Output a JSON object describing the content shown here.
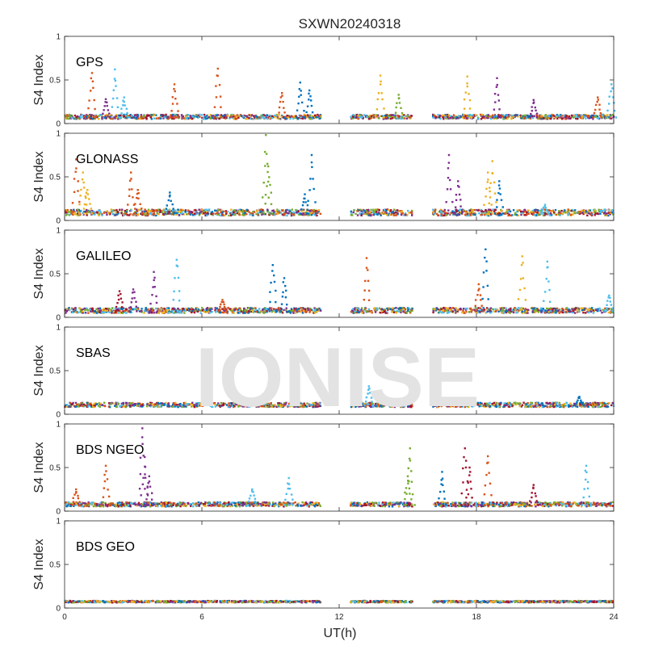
{
  "figure": {
    "title": "SXWN20240318",
    "watermark": "IONISE",
    "xlabel": "UT(h)",
    "ylabel": "S4 Index"
  },
  "colors": {
    "blue": "#0072BD",
    "orange": "#D95319",
    "yellow": "#EDB120",
    "purple": "#7E2F8E",
    "green": "#77AC30",
    "cyan": "#4DBEEE",
    "red": "#A2142F"
  },
  "chart_data": [
    {
      "type": "scatter",
      "panel": "GPS",
      "xlim": [
        0,
        24
      ],
      "ylim": [
        0,
        1
      ],
      "xticks": [
        "0",
        "6",
        "12",
        "18",
        "24"
      ],
      "yticks": [
        "0",
        "0.5",
        "1"
      ],
      "data_windows_h": [
        [
          0,
          11.2
        ],
        [
          12.5,
          15.2
        ],
        [
          16.1,
          24
        ]
      ],
      "baseline": 0.07,
      "spread": 0.05,
      "spikes": [
        {
          "x": 1.2,
          "y": 0.58,
          "color": "orange"
        },
        {
          "x": 2.2,
          "y": 0.62,
          "color": "cyan"
        },
        {
          "x": 2.6,
          "y": 0.3,
          "color": "cyan"
        },
        {
          "x": 1.8,
          "y": 0.28,
          "color": "purple"
        },
        {
          "x": 4.8,
          "y": 0.45,
          "color": "orange"
        },
        {
          "x": 6.7,
          "y": 0.63,
          "color": "orange"
        },
        {
          "x": 9.5,
          "y": 0.35,
          "color": "orange"
        },
        {
          "x": 10.3,
          "y": 0.47,
          "color": "blue"
        },
        {
          "x": 10.7,
          "y": 0.38,
          "color": "blue"
        },
        {
          "x": 13.8,
          "y": 0.55,
          "color": "yellow"
        },
        {
          "x": 14.6,
          "y": 0.33,
          "color": "green"
        },
        {
          "x": 17.6,
          "y": 0.54,
          "color": "yellow"
        },
        {
          "x": 18.9,
          "y": 0.52,
          "color": "purple"
        },
        {
          "x": 20.5,
          "y": 0.27,
          "color": "purple"
        },
        {
          "x": 23.3,
          "y": 0.3,
          "color": "orange"
        },
        {
          "x": 23.9,
          "y": 0.45,
          "color": "cyan"
        }
      ]
    },
    {
      "type": "scatter",
      "panel": "GLONASS",
      "xlim": [
        0,
        24
      ],
      "ylim": [
        0,
        1
      ],
      "xticks": [
        "0",
        "6",
        "12",
        "18",
        "24"
      ],
      "yticks": [
        "0",
        "0.5",
        "1"
      ],
      "data_windows_h": [
        [
          0,
          11.2
        ],
        [
          12.5,
          15.2
        ],
        [
          16.1,
          24
        ]
      ],
      "baseline": 0.08,
      "spread": 0.07,
      "spikes": [
        {
          "x": 0.5,
          "y": 0.7,
          "color": "orange"
        },
        {
          "x": 0.8,
          "y": 0.55,
          "color": "yellow"
        },
        {
          "x": 1.0,
          "y": 0.35,
          "color": "yellow"
        },
        {
          "x": 2.9,
          "y": 0.55,
          "color": "orange"
        },
        {
          "x": 3.2,
          "y": 0.35,
          "color": "orange"
        },
        {
          "x": 4.6,
          "y": 0.32,
          "color": "blue"
        },
        {
          "x": 8.8,
          "y": 0.98,
          "color": "green"
        },
        {
          "x": 8.9,
          "y": 0.62,
          "color": "green"
        },
        {
          "x": 10.8,
          "y": 0.75,
          "color": "blue"
        },
        {
          "x": 10.5,
          "y": 0.3,
          "color": "blue"
        },
        {
          "x": 16.8,
          "y": 0.75,
          "color": "purple"
        },
        {
          "x": 17.2,
          "y": 0.45,
          "color": "purple"
        },
        {
          "x": 18.7,
          "y": 0.68,
          "color": "yellow"
        },
        {
          "x": 18.5,
          "y": 0.55,
          "color": "yellow"
        },
        {
          "x": 19.0,
          "y": 0.45,
          "color": "blue"
        },
        {
          "x": 21.0,
          "y": 0.18,
          "color": "cyan"
        }
      ]
    },
    {
      "type": "scatter",
      "panel": "GALILEO",
      "xlim": [
        0,
        24
      ],
      "ylim": [
        0,
        1
      ],
      "xticks": [
        "0",
        "6",
        "12",
        "18",
        "24"
      ],
      "yticks": [
        "0",
        "0.5",
        "1"
      ],
      "data_windows_h": [
        [
          0,
          11.2
        ],
        [
          12.5,
          15.2
        ],
        [
          16.1,
          24
        ]
      ],
      "baseline": 0.07,
      "spread": 0.06,
      "spikes": [
        {
          "x": 2.4,
          "y": 0.3,
          "color": "red"
        },
        {
          "x": 3.0,
          "y": 0.32,
          "color": "purple"
        },
        {
          "x": 3.9,
          "y": 0.52,
          "color": "purple"
        },
        {
          "x": 4.9,
          "y": 0.66,
          "color": "cyan"
        },
        {
          "x": 6.9,
          "y": 0.2,
          "color": "orange"
        },
        {
          "x": 9.1,
          "y": 0.6,
          "color": "blue"
        },
        {
          "x": 9.6,
          "y": 0.45,
          "color": "blue"
        },
        {
          "x": 13.2,
          "y": 0.68,
          "color": "orange"
        },
        {
          "x": 18.4,
          "y": 0.78,
          "color": "blue"
        },
        {
          "x": 18.1,
          "y": 0.38,
          "color": "orange"
        },
        {
          "x": 20.0,
          "y": 0.7,
          "color": "yellow"
        },
        {
          "x": 21.1,
          "y": 0.64,
          "color": "cyan"
        },
        {
          "x": 23.8,
          "y": 0.25,
          "color": "cyan"
        }
      ]
    },
    {
      "type": "scatter",
      "panel": "SBAS",
      "xlim": [
        0,
        24
      ],
      "ylim": [
        0,
        1
      ],
      "xticks": [
        "0",
        "6",
        "12",
        "18",
        "24"
      ],
      "yticks": [
        "0",
        "0.5",
        "1"
      ],
      "data_windows_h": [
        [
          0,
          11.2
        ],
        [
          12.5,
          15.2
        ],
        [
          16.1,
          24
        ]
      ],
      "baseline": 0.1,
      "spread": 0.05,
      "spikes": [
        {
          "x": 13.3,
          "y": 0.32,
          "color": "cyan"
        },
        {
          "x": 22.5,
          "y": 0.2,
          "color": "blue"
        }
      ]
    },
    {
      "type": "scatter",
      "panel": "BDS NGEO",
      "xlim": [
        0,
        24
      ],
      "ylim": [
        0,
        1
      ],
      "xticks": [
        "0",
        "6",
        "12",
        "18",
        "24"
      ],
      "yticks": [
        "0",
        "0.5",
        "1"
      ],
      "data_windows_h": [
        [
          0,
          11.2
        ],
        [
          12.5,
          15.2
        ],
        [
          16.1,
          24
        ]
      ],
      "baseline": 0.07,
      "spread": 0.05,
      "spikes": [
        {
          "x": 0.5,
          "y": 0.25,
          "color": "orange"
        },
        {
          "x": 1.8,
          "y": 0.52,
          "color": "orange"
        },
        {
          "x": 3.4,
          "y": 0.95,
          "color": "purple"
        },
        {
          "x": 3.5,
          "y": 0.62,
          "color": "purple"
        },
        {
          "x": 3.7,
          "y": 0.4,
          "color": "purple"
        },
        {
          "x": 8.2,
          "y": 0.25,
          "color": "cyan"
        },
        {
          "x": 9.8,
          "y": 0.38,
          "color": "cyan"
        },
        {
          "x": 15.1,
          "y": 0.72,
          "color": "green"
        },
        {
          "x": 15.0,
          "y": 0.4,
          "color": "green"
        },
        {
          "x": 16.5,
          "y": 0.45,
          "color": "blue"
        },
        {
          "x": 17.5,
          "y": 0.72,
          "color": "red"
        },
        {
          "x": 17.7,
          "y": 0.5,
          "color": "red"
        },
        {
          "x": 18.5,
          "y": 0.63,
          "color": "orange"
        },
        {
          "x": 20.5,
          "y": 0.3,
          "color": "red"
        },
        {
          "x": 22.8,
          "y": 0.52,
          "color": "cyan"
        }
      ]
    },
    {
      "type": "scatter",
      "panel": "BDS GEO",
      "xlim": [
        0,
        24
      ],
      "ylim": [
        0,
        1
      ],
      "xticks": [
        "0",
        "6",
        "12",
        "18",
        "24"
      ],
      "yticks": [
        "0",
        "0.5",
        "1"
      ],
      "data_windows_h": [
        [
          0,
          11.2
        ],
        [
          12.5,
          15.2
        ],
        [
          16.1,
          24
        ]
      ],
      "baseline": 0.07,
      "spread": 0.02,
      "spikes": []
    }
  ]
}
